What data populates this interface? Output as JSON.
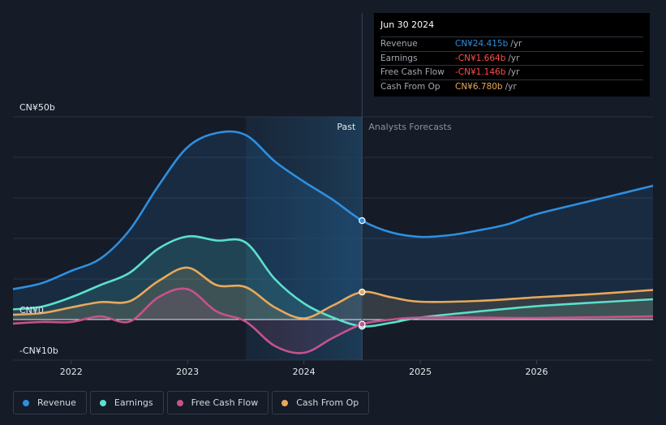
{
  "chart_data": {
    "type": "area",
    "title": "",
    "xlabel": "",
    "ylabel": "",
    "currency_axis_labels": [
      "CN¥50b",
      "CN¥0",
      "-CN¥10b"
    ],
    "y_axis_values": [
      50,
      0,
      -10
    ],
    "ylim": [
      -10,
      50
    ],
    "xlim": [
      2021.5,
      2027.0
    ],
    "x_ticks": [
      {
        "value": 2022,
        "label": "2022"
      },
      {
        "value": 2023,
        "label": "2023"
      },
      {
        "value": 2024,
        "label": "2024"
      },
      {
        "value": 2025,
        "label": "2025"
      },
      {
        "value": 2026,
        "label": "2026"
      }
    ],
    "divider_x": 2024.5,
    "shade_start_x": 2023.5,
    "past_label": "Past",
    "forecast_label": "Analysts Forecasts",
    "series": [
      {
        "name": "Revenue",
        "color": "#2e8fe0",
        "x": [
          2021.5,
          2021.75,
          2022.0,
          2022.25,
          2022.5,
          2022.75,
          2023.0,
          2023.25,
          2023.5,
          2023.75,
          2024.0,
          2024.25,
          2024.5,
          2024.75,
          2025.0,
          2025.25,
          2025.5,
          2025.75,
          2026.0,
          2026.5,
          2027.0
        ],
        "values": [
          7.5,
          9,
          12,
          15,
          22,
          33,
          42.5,
          46,
          45.5,
          39,
          34,
          29.5,
          24.4,
          21.5,
          20.4,
          20.8,
          22,
          23.5,
          26,
          29.5,
          33
        ]
      },
      {
        "name": "Earnings",
        "color": "#5ce0cc",
        "x": [
          2021.5,
          2021.75,
          2022.0,
          2022.25,
          2022.5,
          2022.75,
          2023.0,
          2023.25,
          2023.5,
          2023.75,
          2024.0,
          2024.25,
          2024.5,
          2024.75,
          2025.0,
          2025.5,
          2026.0,
          2026.5,
          2027.0
        ],
        "values": [
          2.5,
          3.2,
          5.5,
          8.5,
          11.5,
          17.5,
          20.5,
          19.5,
          19,
          10,
          4,
          0.5,
          -1.664,
          -0.8,
          0.5,
          2,
          3.3,
          4.2,
          5
        ]
      },
      {
        "name": "Free Cash Flow",
        "color": "#c6528c",
        "x": [
          2021.5,
          2021.75,
          2022.0,
          2022.25,
          2022.5,
          2022.75,
          2023.0,
          2023.25,
          2023.5,
          2023.75,
          2024.0,
          2024.25,
          2024.5,
          2024.75,
          2025.0,
          2025.5,
          2026.0,
          2027.0
        ],
        "values": [
          -1,
          -0.6,
          -0.6,
          0.8,
          -0.5,
          5.5,
          7.5,
          2,
          -0.5,
          -6.5,
          -8.2,
          -4.5,
          -1.146,
          0,
          0.5,
          0.5,
          0.4,
          0.8
        ]
      },
      {
        "name": "Cash From Op",
        "color": "#e8a95b",
        "x": [
          2021.5,
          2021.75,
          2022.0,
          2022.25,
          2022.5,
          2022.75,
          2023.0,
          2023.25,
          2023.5,
          2023.75,
          2024.0,
          2024.25,
          2024.5,
          2024.75,
          2025.0,
          2025.5,
          2026.0,
          2026.5,
          2027.0
        ],
        "values": [
          1.2,
          1.6,
          3,
          4.3,
          4.5,
          9.5,
          12.8,
          8.5,
          8,
          3,
          0.3,
          3.5,
          6.78,
          5.5,
          4.4,
          4.6,
          5.5,
          6.3,
          7.3
        ]
      }
    ],
    "highlight_x": 2024.5,
    "tooltip": {
      "date": "Jun 30 2024",
      "rows": [
        {
          "label": "Revenue",
          "value": "CN¥24.415b",
          "unit": "/yr",
          "color": "#2e8fe0"
        },
        {
          "label": "Earnings",
          "value": "-CN¥1.664b",
          "unit": "/yr",
          "color": "#ff4d4d"
        },
        {
          "label": "Free Cash Flow",
          "value": "-CN¥1.146b",
          "unit": "/yr",
          "color": "#ff4d4d"
        },
        {
          "label": "Cash From Op",
          "value": "CN¥6.780b",
          "unit": "/yr",
          "color": "#e8a95b"
        }
      ]
    },
    "legend": [
      {
        "name": "Revenue",
        "color": "#2e8fe0"
      },
      {
        "name": "Earnings",
        "color": "#5ce0cc"
      },
      {
        "name": "Free Cash Flow",
        "color": "#c6528c"
      },
      {
        "name": "Cash From Op",
        "color": "#e8a95b"
      }
    ]
  }
}
